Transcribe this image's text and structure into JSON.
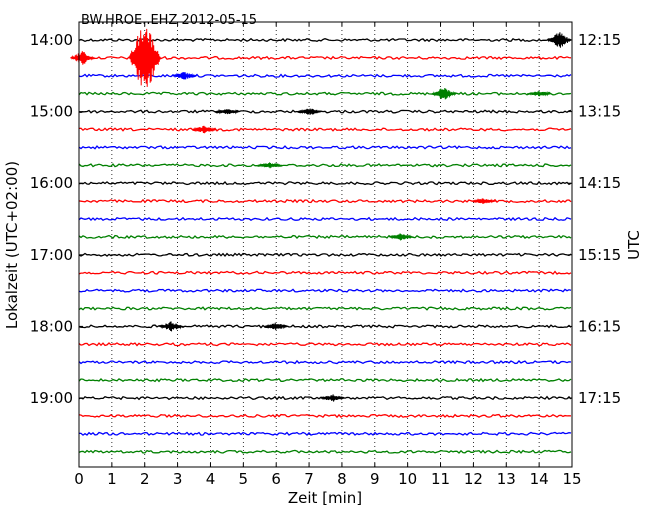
{
  "chart_data": {
    "type": "line",
    "title": "BW.HROE..EHZ 2012-05-15",
    "xlabel": "Zeit  [min]",
    "ylabel_left": "Lokalzeit (UTC+02:00)",
    "ylabel_right": "UTC",
    "xlim": [
      0,
      15
    ],
    "x_ticks": [
      "0",
      "1",
      "2",
      "3",
      "4",
      "5",
      "6",
      "7",
      "8",
      "9",
      "10",
      "11",
      "12",
      "13",
      "14",
      "15"
    ],
    "left_ticks": [
      {
        "label": "14:00",
        "trace": 0
      },
      {
        "label": "15:00",
        "trace": 4
      },
      {
        "label": "16:00",
        "trace": 8
      },
      {
        "label": "17:00",
        "trace": 12
      },
      {
        "label": "18:00",
        "trace": 16
      },
      {
        "label": "19:00",
        "trace": 20
      }
    ],
    "right_ticks": [
      {
        "label": "12:15",
        "trace": 0
      },
      {
        "label": "13:15",
        "trace": 4
      },
      {
        "label": "14:15",
        "trace": 8
      },
      {
        "label": "15:15",
        "trace": 12
      },
      {
        "label": "16:15",
        "trace": 16
      },
      {
        "label": "17:15",
        "trace": 20
      }
    ],
    "trace_count": 24,
    "trace_interval_min": 15,
    "colors": [
      "#000000",
      "#ff0000",
      "#0000ff",
      "#008000"
    ],
    "grid": "vertical dotted",
    "events": [
      {
        "trace": 0,
        "x": 14.6,
        "amp": 9
      },
      {
        "trace": 1,
        "x": 0.1,
        "amp": 7
      },
      {
        "trace": 1,
        "x": 2.0,
        "amp": 40
      },
      {
        "trace": 2,
        "x": 3.2,
        "amp": 4
      },
      {
        "trace": 3,
        "x": 11.1,
        "amp": 7
      },
      {
        "trace": 3,
        "x": 14.0,
        "amp": 3
      },
      {
        "trace": 4,
        "x": 7.0,
        "amp": 4
      },
      {
        "trace": 4,
        "x": 4.5,
        "amp": 3
      },
      {
        "trace": 5,
        "x": 3.8,
        "amp": 4
      },
      {
        "trace": 7,
        "x": 5.8,
        "amp": 3
      },
      {
        "trace": 9,
        "x": 12.3,
        "amp": 3
      },
      {
        "trace": 11,
        "x": 9.8,
        "amp": 4
      },
      {
        "trace": 16,
        "x": 2.8,
        "amp": 5
      },
      {
        "trace": 16,
        "x": 6.0,
        "amp": 4
      },
      {
        "trace": 20,
        "x": 7.7,
        "amp": 4
      }
    ]
  }
}
